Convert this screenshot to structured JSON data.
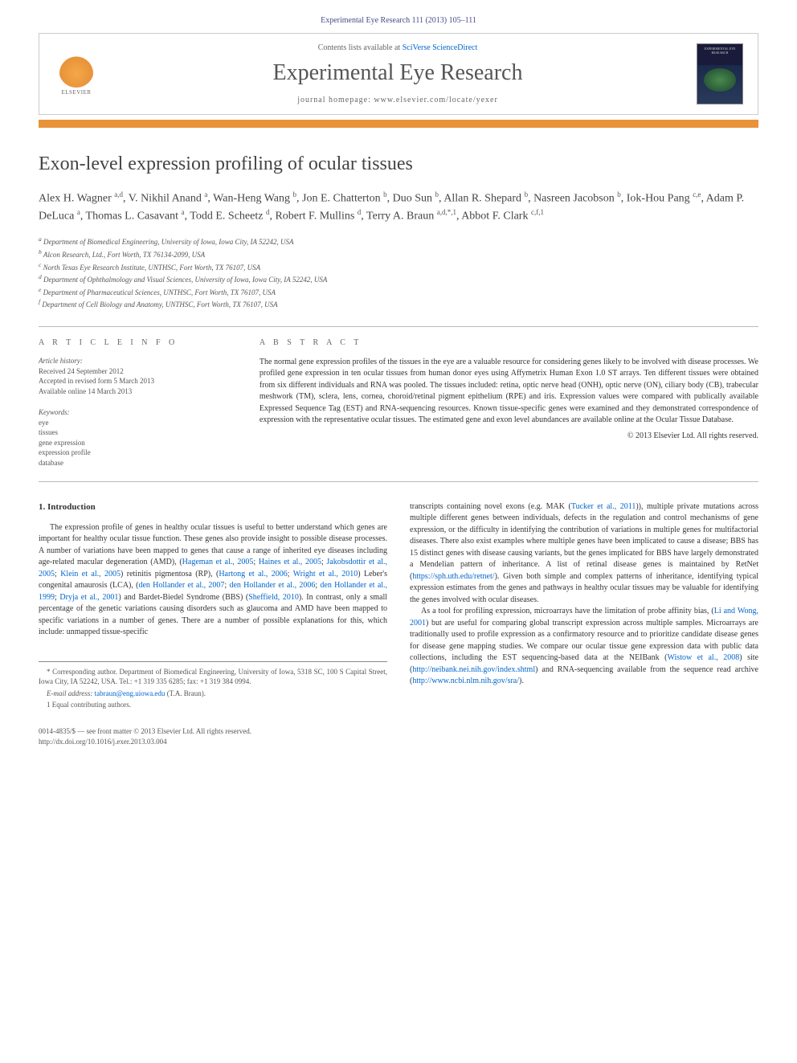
{
  "citation": "Experimental Eye Research 111 (2013) 105–111",
  "header": {
    "contents_prefix": "Contents lists available at ",
    "contents_link": "SciVerse ScienceDirect",
    "journal": "Experimental Eye Research",
    "homepage_prefix": "journal homepage: ",
    "homepage_url": "www.elsevier.com/locate/yexer",
    "elsevier": "ELSEVIER",
    "cover_text": "EXPERIMENTAL EYE RESEARCH"
  },
  "title": "Exon-level expression profiling of ocular tissues",
  "authors_html": "Alex H. Wagner <sup>a,d</sup>, V. Nikhil Anand <sup>a</sup>, Wan-Heng Wang <sup>b</sup>, Jon E. Chatterton <sup>b</sup>, Duo Sun <sup>b</sup>, Allan R. Shepard <sup>b</sup>, Nasreen Jacobson <sup>b</sup>, Iok-Hou Pang <sup>c,e</sup>, Adam P. DeLuca <sup>a</sup>, Thomas L. Casavant <sup>a</sup>, Todd E. Scheetz <sup>d</sup>, Robert F. Mullins <sup>d</sup>, Terry A. Braun <sup>a,d,*,1</sup>, Abbot F. Clark <sup>c,f,1</sup>",
  "affiliations": [
    "a Department of Biomedical Engineering, University of Iowa, Iowa City, IA 52242, USA",
    "b Alcon Research, Ltd., Fort Worth, TX 76134-2099, USA",
    "c North Texas Eye Research Institute, UNTHSC, Fort Worth, TX 76107, USA",
    "d Department of Ophthalmology and Visual Sciences, University of Iowa, Iowa City, IA 52242, USA",
    "e Department of Pharmaceutical Sciences, UNTHSC, Fort Worth, TX 76107, USA",
    "f Department of Cell Biology and Anatomy, UNTHSC, Fort Worth, TX 76107, USA"
  ],
  "info": {
    "article_info_label": "A R T I C L E   I N F O",
    "abstract_label": "A B S T R A C T",
    "history_label": "Article history:",
    "history": [
      "Received 24 September 2012",
      "Accepted in revised form 5 March 2013",
      "Available online 14 March 2013"
    ],
    "keywords_label": "Keywords:",
    "keywords": [
      "eye",
      "tissues",
      "gene expression",
      "expression profile",
      "database"
    ]
  },
  "abstract": "The normal gene expression profiles of the tissues in the eye are a valuable resource for considering genes likely to be involved with disease processes. We profiled gene expression in ten ocular tissues from human donor eyes using Affymetrix Human Exon 1.0 ST arrays. Ten different tissues were obtained from six different individuals and RNA was pooled. The tissues included: retina, optic nerve head (ONH), optic nerve (ON), ciliary body (CB), trabecular meshwork (TM), sclera, lens, cornea, choroid/retinal pigment epithelium (RPE) and iris. Expression values were compared with publically available Expressed Sequence Tag (EST) and RNA-sequencing resources. Known tissue-specific genes were examined and they demonstrated correspondence of expression with the representative ocular tissues. The estimated gene and exon level abundances are available online at the Ocular Tissue Database.",
  "copyright": "© 2013 Elsevier Ltd. All rights reserved.",
  "section1_heading": "1.  Introduction",
  "col1": {
    "p1_a": "The expression profile of genes in healthy ocular tissues is useful to better understand which genes are important for healthy ocular tissue function. These genes also provide insight to possible disease processes. A number of variations have been mapped to genes that cause a range of inherited eye diseases including age-related macular degeneration (AMD), (",
    "r1": "Hageman et al., 2005",
    "s1": "; ",
    "r2": "Haines et al., 2005",
    "s2": "; ",
    "r3": "Jakobsdottir et al., 2005",
    "s3": "; ",
    "r4": "Klein et al., 2005",
    "p1_b": ") retinitis pigmentosa (RP), (",
    "r5": "Hartong et al., 2006",
    "s4": "; ",
    "r6": "Wright et al., 2010",
    "p1_c": ") Leber's congenital amaurosis (LCA), (",
    "r7": "den Hollander et al., 2007",
    "s5": "; ",
    "r8": "den Hollander et al., 2006",
    "s6": "; ",
    "r9": "den Hollander et al., 1999",
    "s7": "; ",
    "r10": "Dryja et al., 2001",
    "p1_d": ") and Bardet-Biedel Syndrome (BBS) (",
    "r11": "Sheffield, 2010",
    "p1_e": "). In contrast, only a small percentage of the genetic variations causing disorders such as glaucoma and AMD have been mapped to specific variations in a number of genes. There are a number of possible explanations for this, which include: unmapped tissue-specific"
  },
  "col2": {
    "p1_a": "transcripts containing novel exons (e.g. MAK (",
    "r1": "Tucker et al., 2011",
    "p1_b": ")), multiple private mutations across multiple different genes between individuals, defects in the regulation and control mechanisms of gene expression, or the difficulty in identifying the contribution of variations in multiple genes for multifactorial diseases. There also exist examples where multiple genes have been implicated to cause a disease; BBS has 15 distinct genes with disease causing variants, but the genes implicated for BBS have largely demonstrated a Mendelian pattern of inheritance. A list of retinal disease genes is maintained by RetNet (",
    "u1": "https://sph.uth.edu/retnet/",
    "p1_c": "). Given both simple and complex patterns of inheritance, identifying typical expression estimates from the genes and pathways in healthy ocular tissues may be valuable for identifying the genes involved with ocular diseases.",
    "p2_a": "As a tool for profiling expression, microarrays have the limitation of probe affinity bias, (",
    "r2": "Li and Wong, 2001",
    "p2_b": ") but are useful for comparing global transcript expression across multiple samples. Microarrays are traditionally used to profile expression as a confirmatory resource and to prioritize candidate disease genes for disease gene mapping studies. We compare our ocular tissue gene expression data with public data collections, including the EST sequencing-based data at the NEIBank (",
    "r3": "Wistow et al., 2008",
    "p2_c": ") site (",
    "u2": "http://neibank.nei.nih.gov/index.shtml",
    "p2_d": ") and RNA-sequencing available from the sequence read archive (",
    "u3": "http://www.ncbi.nlm.nih.gov/sra/",
    "p2_e": ")."
  },
  "footer": {
    "corr": "* Corresponding author. Department of Biomedical Engineering, University of Iowa, 5318 SC, 100 S Capital Street, Iowa City, IA 52242, USA. Tel.: +1 319 335 6285; fax: +1 319 384 0994.",
    "email_label": "E-mail address: ",
    "email": "tabraun@eng.uiowa.edu",
    "email_suffix": " (T.A. Braun).",
    "equal": "1 Equal contributing authors."
  },
  "bottom": {
    "line1": "0014-4835/$ — see front matter © 2013 Elsevier Ltd. All rights reserved.",
    "doi": "http://dx.doi.org/10.1016/j.exer.2013.03.004"
  }
}
